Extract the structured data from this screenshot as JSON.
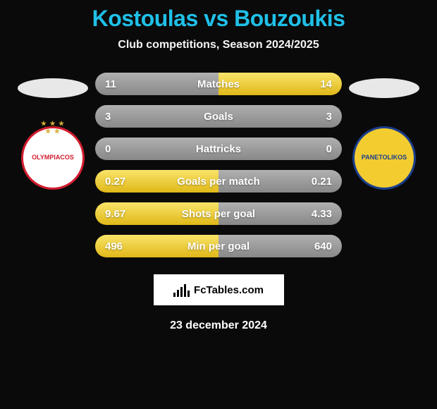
{
  "colors": {
    "background": "#0a0a0a",
    "title": "#1fc0e8",
    "stat_gray_top": "#b0b0b0",
    "stat_gray_bottom": "#888888",
    "stat_yellow_top": "#f9e46a",
    "stat_yellow_bottom": "#e0b818",
    "ellipse": "#e8e8e8",
    "crest_left_border": "#d21c2e",
    "crest_left_bg": "#ffffff",
    "crest_right_border": "#1a3e8c",
    "crest_right_bg": "#f3cc30",
    "logo_bg": "#ffffff"
  },
  "header": {
    "title": "Kostoulas vs Bouzoukis",
    "subtitle": "Club competitions, Season 2024/2025"
  },
  "player_left": {
    "club_label": "OLYMPIACOS"
  },
  "player_right": {
    "club_label": "PANETOLIKOS"
  },
  "stats": {
    "rows": [
      {
        "label": "Matches",
        "left": "11",
        "right": "14",
        "highlight_left": false,
        "highlight_right": true
      },
      {
        "label": "Goals",
        "left": "3",
        "right": "3",
        "highlight_left": false,
        "highlight_right": false
      },
      {
        "label": "Hattricks",
        "left": "0",
        "right": "0",
        "highlight_left": false,
        "highlight_right": false
      },
      {
        "label": "Goals per match",
        "left": "0.27",
        "right": "0.21",
        "highlight_left": true,
        "highlight_right": false
      },
      {
        "label": "Shots per goal",
        "left": "9.67",
        "right": "4.33",
        "highlight_left": true,
        "highlight_right": false
      },
      {
        "label": "Min per goal",
        "left": "496",
        "right": "640",
        "highlight_left": true,
        "highlight_right": false
      }
    ]
  },
  "footer": {
    "logo_text": "FcTables.com",
    "logo_bar_heights": [
      6,
      10,
      14,
      18,
      9
    ],
    "date": "23 december 2024"
  }
}
